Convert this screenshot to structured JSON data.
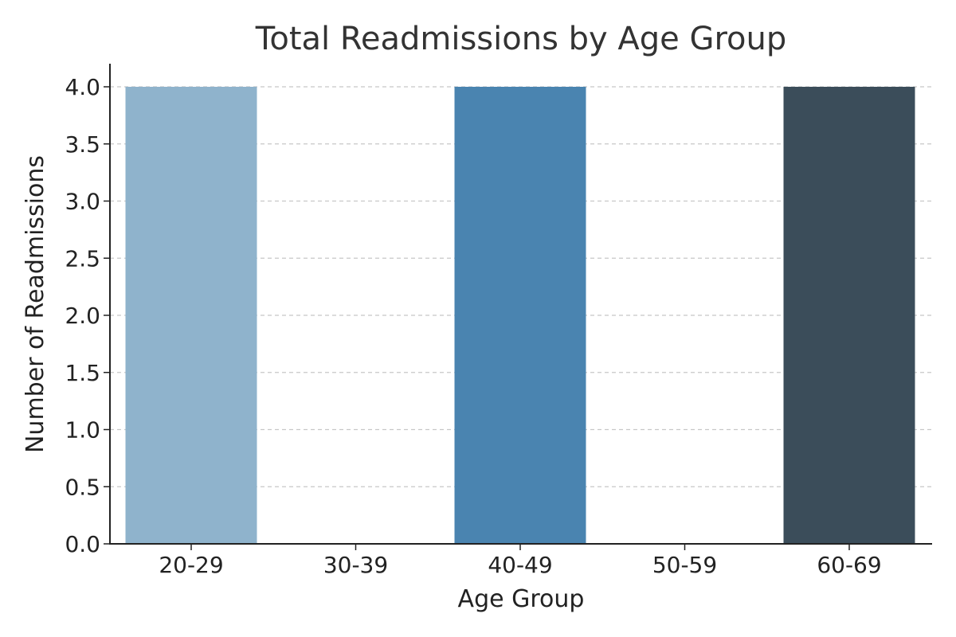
{
  "chart_data": {
    "type": "bar",
    "title": "Total Readmissions by Age Group",
    "xlabel": "Age Group",
    "ylabel": "Number of Readmissions",
    "categories": [
      "20-29",
      "30-39",
      "40-49",
      "50-59",
      "60-69"
    ],
    "values": [
      4,
      0,
      4,
      0,
      4
    ],
    "bar_colors": [
      "#8fb3cc",
      "#8fb3cc",
      "#4a84b0",
      "#4a84b0",
      "#3b4d5a"
    ],
    "ylim": [
      0,
      4.0
    ],
    "yticks": [
      0.0,
      0.5,
      1.0,
      1.5,
      2.0,
      2.5,
      3.0,
      3.5,
      4.0
    ],
    "ytick_labels": [
      "0.0",
      "0.5",
      "1.0",
      "1.5",
      "2.0",
      "2.5",
      "3.0",
      "3.5",
      "4.0"
    ],
    "grid": "y-dashed",
    "legend": "none"
  }
}
